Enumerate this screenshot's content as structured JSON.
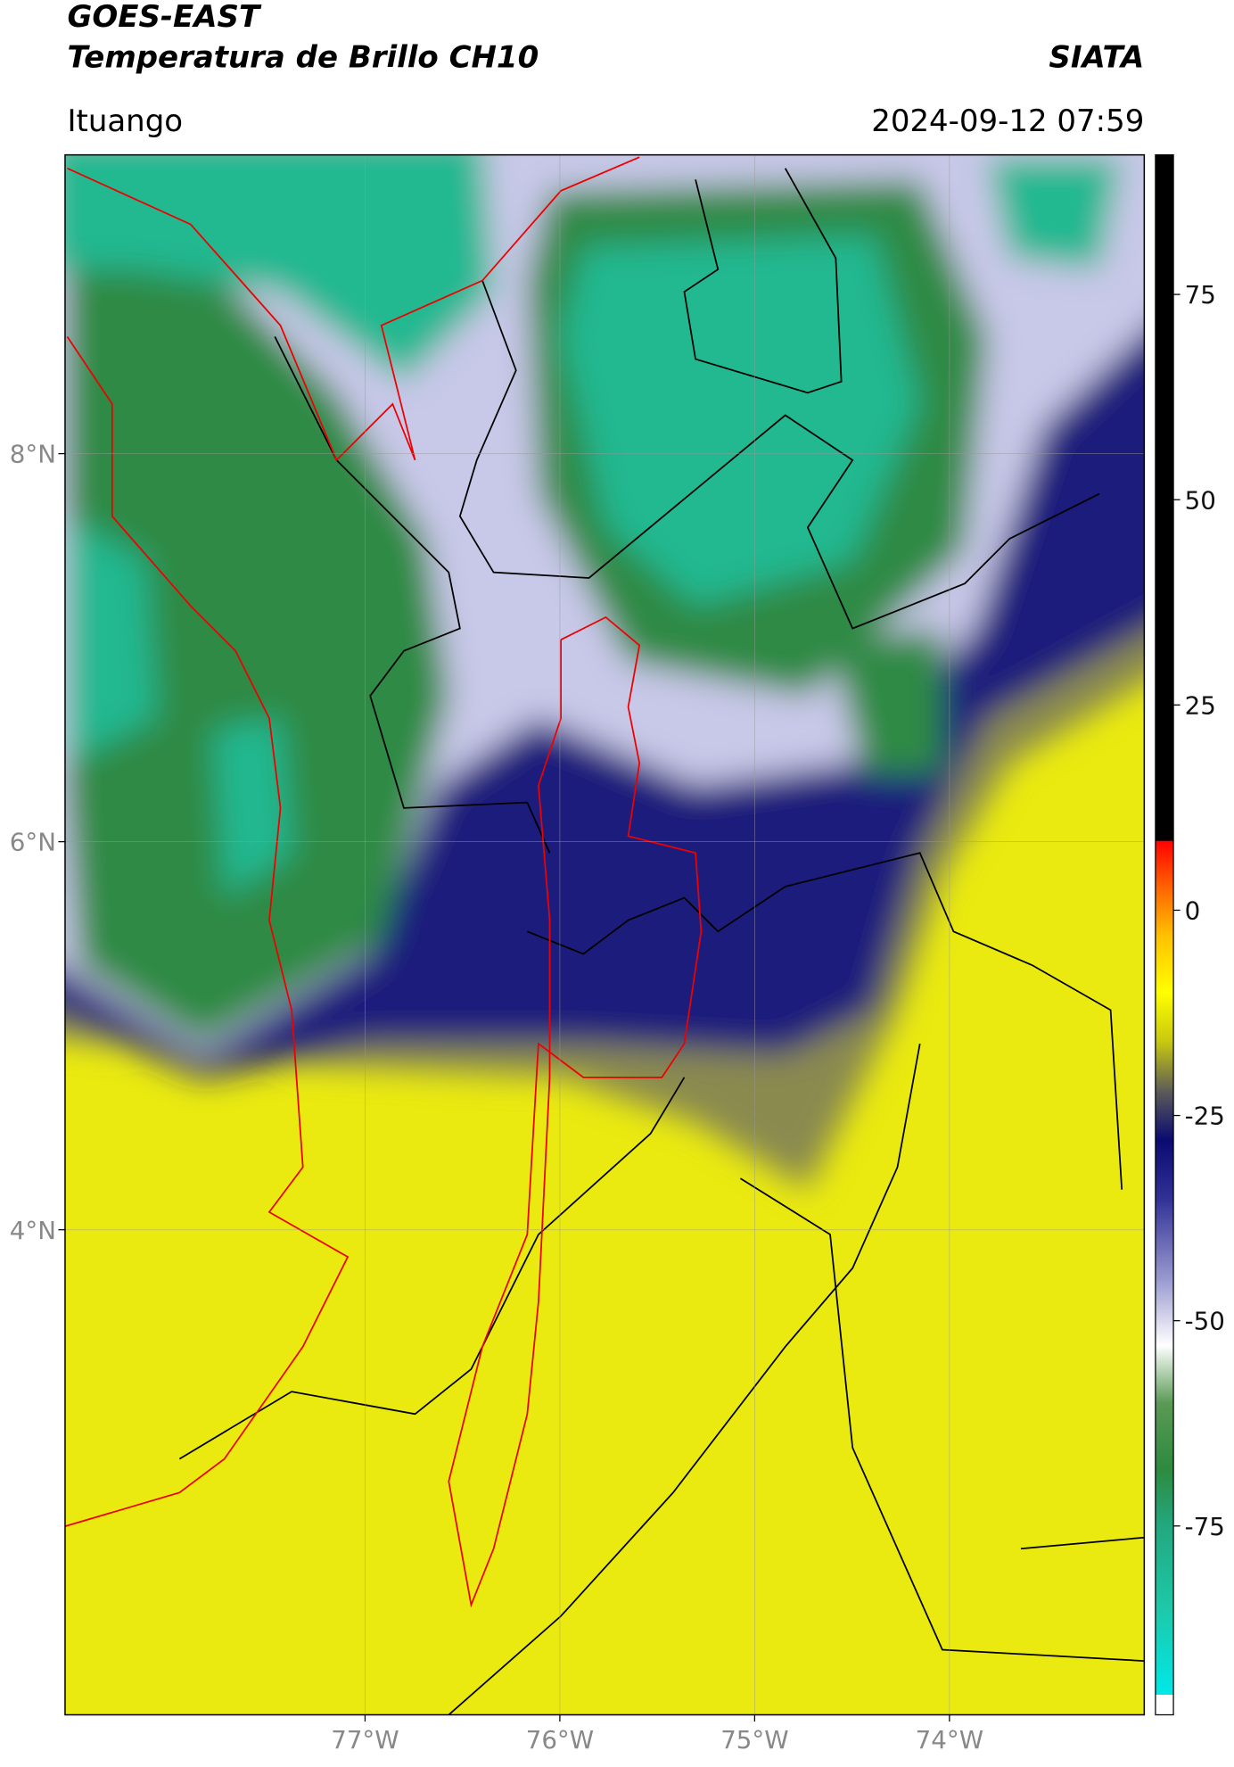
{
  "chart_data": {
    "type": "map",
    "title": "GOES-EAST",
    "subtitle": "Temperatura de Brillo CH10",
    "source": "SIATA",
    "location": "Ituango",
    "timestamp": "2024-09-12 07:59",
    "xlim": [
      -78.54,
      -73.0
    ],
    "ylim": [
      1.5,
      9.54
    ],
    "xticks": [
      {
        "value": -77,
        "label": "77°W"
      },
      {
        "value": -76,
        "label": "76°W"
      },
      {
        "value": -75,
        "label": "75°W"
      },
      {
        "value": -74,
        "label": "74°W"
      }
    ],
    "yticks": [
      {
        "value": 4,
        "label": "4°N"
      },
      {
        "value": 6,
        "label": "6°N"
      },
      {
        "value": 8,
        "label": "8°N"
      }
    ],
    "grid": true,
    "colorbar": {
      "lim": [
        -98,
        92
      ],
      "ticks": [
        -75,
        -50,
        -25,
        0,
        25,
        50,
        75
      ],
      "stops": [
        {
          "value": -98,
          "color": "#ffffff"
        },
        {
          "value": -95.5,
          "color": "#ffffff"
        },
        {
          "value": -95.5,
          "color": "#00e8e8"
        },
        {
          "value": -85,
          "color": "#1ec8a8"
        },
        {
          "value": -75,
          "color": "#22a880"
        },
        {
          "value": -68,
          "color": "#2e8a3e"
        },
        {
          "value": -60,
          "color": "#5a9a55"
        },
        {
          "value": -53,
          "color": "#ffffff"
        },
        {
          "value": -45,
          "color": "#9a9ad0"
        },
        {
          "value": -35,
          "color": "#303095"
        },
        {
          "value": -28,
          "color": "#0a0a70"
        },
        {
          "value": -22,
          "color": "#5c5c58"
        },
        {
          "value": -16,
          "color": "#c8c810"
        },
        {
          "value": -10,
          "color": "#ffff00"
        },
        {
          "value": -3,
          "color": "#ffc000"
        },
        {
          "value": 3,
          "color": "#ff6000"
        },
        {
          "value": 8.5,
          "color": "#ff0000"
        },
        {
          "value": 8.5,
          "color": "#000000"
        },
        {
          "value": 92,
          "color": "#000000"
        }
      ]
    }
  }
}
